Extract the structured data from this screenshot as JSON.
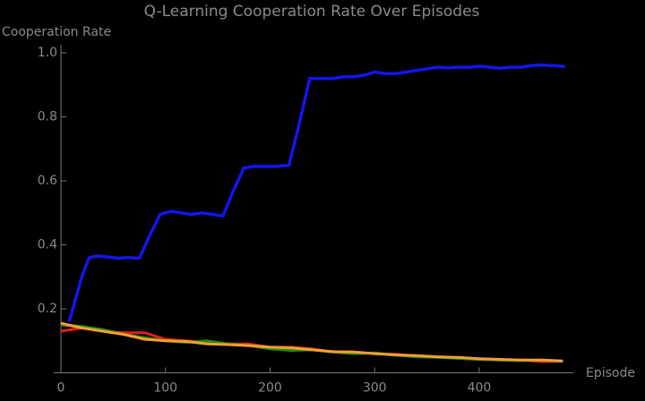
{
  "chart_data": {
    "type": "line",
    "title": "Q-Learning Cooperation Rate Over Episodes",
    "y_label": "Cooperation Rate",
    "x_label": "Episode",
    "xlim": [
      0,
      490
    ],
    "ylim": [
      0,
      1
    ],
    "xticks": [
      0,
      100,
      200,
      300,
      400
    ],
    "yticks": [
      0.2,
      0.4,
      0.6,
      0.8,
      {
        "value": 1,
        "label": "1.0"
      }
    ],
    "series": [
      {
        "color": "#1414f0",
        "x": [
          8,
          20,
          27,
          35,
          45,
          55,
          65,
          75,
          85,
          95,
          105,
          115,
          125,
          135,
          145,
          155,
          165,
          175,
          185,
          195,
          205,
          218,
          228,
          238,
          250,
          260,
          270,
          280,
          290,
          300,
          310,
          320,
          330,
          340,
          350,
          360,
          370,
          380,
          390,
          400,
          410,
          420,
          430,
          440,
          450,
          460,
          470,
          482
        ],
        "values": [
          0.16,
          0.3,
          0.36,
          0.365,
          0.362,
          0.358,
          0.36,
          0.358,
          0.43,
          0.495,
          0.505,
          0.5,
          0.495,
          0.5,
          0.495,
          0.49,
          0.57,
          0.64,
          0.645,
          0.645,
          0.645,
          0.648,
          0.78,
          0.92,
          0.92,
          0.92,
          0.925,
          0.925,
          0.93,
          0.94,
          0.935,
          0.935,
          0.94,
          0.945,
          0.95,
          0.955,
          0.953,
          0.955,
          0.955,
          0.958,
          0.955,
          0.952,
          0.955,
          0.955,
          0.96,
          0.962,
          0.96,
          0.957
        ]
      },
      {
        "color": "#e02020",
        "x": [
          0,
          20,
          40,
          60,
          80,
          100,
          120,
          140,
          160,
          180,
          200,
          220,
          240,
          260,
          280,
          300,
          320,
          340,
          360,
          380,
          400,
          420,
          440,
          460,
          480
        ],
        "values": [
          0.13,
          0.14,
          0.13,
          0.125,
          0.125,
          0.105,
          0.1,
          0.095,
          0.09,
          0.09,
          0.08,
          0.08,
          0.075,
          0.065,
          0.065,
          0.06,
          0.058,
          0.052,
          0.05,
          0.045,
          0.042,
          0.04,
          0.04,
          0.035,
          0.036
        ]
      },
      {
        "color": "#1a8c1a",
        "x": [
          0,
          20,
          40,
          60,
          80,
          100,
          120,
          140,
          160,
          180,
          200,
          220,
          240,
          260,
          280,
          300,
          320,
          340,
          360,
          380,
          400,
          420,
          440,
          460,
          480
        ],
        "values": [
          0.15,
          0.145,
          0.135,
          0.12,
          0.11,
          0.1,
          0.095,
          0.1,
          0.09,
          0.085,
          0.075,
          0.07,
          0.072,
          0.065,
          0.06,
          0.062,
          0.055,
          0.05,
          0.048,
          0.045,
          0.042,
          0.04,
          0.038,
          0.04,
          0.036
        ]
      },
      {
        "color": "#f5a030",
        "x": [
          0,
          20,
          40,
          60,
          80,
          100,
          120,
          140,
          160,
          180,
          200,
          220,
          240,
          260,
          280,
          300,
          320,
          340,
          360,
          380,
          400,
          420,
          440,
          460,
          480
        ],
        "values": [
          0.155,
          0.14,
          0.13,
          0.12,
          0.105,
          0.1,
          0.098,
          0.09,
          0.088,
          0.085,
          0.08,
          0.078,
          0.072,
          0.066,
          0.065,
          0.06,
          0.056,
          0.054,
          0.05,
          0.048,
          0.044,
          0.042,
          0.04,
          0.04,
          0.037
        ]
      }
    ]
  }
}
